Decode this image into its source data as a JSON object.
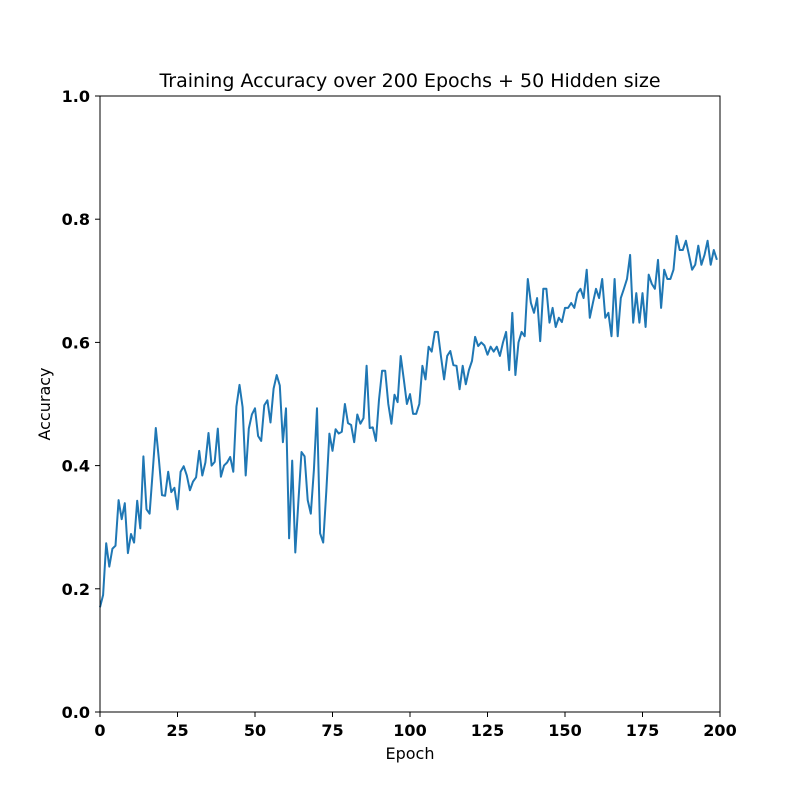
{
  "chart_data": {
    "type": "line",
    "title": "Training Accuracy over 200 Epochs + 50 Hidden size",
    "xlabel": "Epoch",
    "ylabel": "Accuracy",
    "xlim": [
      0,
      200
    ],
    "ylim": [
      0.0,
      1.0
    ],
    "x_ticks": [
      0,
      25,
      50,
      75,
      100,
      125,
      150,
      175,
      200
    ],
    "x_tick_labels": [
      "0",
      "25",
      "50",
      "75",
      "100",
      "125",
      "150",
      "175",
      "200"
    ],
    "y_ticks": [
      0.0,
      0.2,
      0.4,
      0.6,
      0.8,
      1.0
    ],
    "y_tick_labels": [
      "0.0",
      "0.2",
      "0.4",
      "0.6",
      "0.8",
      "1.0"
    ],
    "grid": false,
    "line_color": "#1f77b4",
    "series": [
      {
        "values": [
          0.17,
          0.19,
          0.274,
          0.236,
          0.265,
          0.27,
          0.344,
          0.313,
          0.339,
          0.258,
          0.289,
          0.275,
          0.343,
          0.298,
          0.415,
          0.329,
          0.322,
          0.39,
          0.461,
          0.41,
          0.352,
          0.351,
          0.39,
          0.357,
          0.364,
          0.329,
          0.39,
          0.399,
          0.384,
          0.36,
          0.374,
          0.381,
          0.424,
          0.384,
          0.405,
          0.453,
          0.4,
          0.406,
          0.46,
          0.382,
          0.4,
          0.405,
          0.414,
          0.39,
          0.496,
          0.531,
          0.495,
          0.384,
          0.46,
          0.483,
          0.493,
          0.448,
          0.44,
          0.498,
          0.506,
          0.47,
          0.525,
          0.547,
          0.53,
          0.438,
          0.493,
          0.282,
          0.408,
          0.259,
          0.342,
          0.422,
          0.415,
          0.344,
          0.322,
          0.393,
          0.493,
          0.29,
          0.275,
          0.358,
          0.452,
          0.424,
          0.459,
          0.452,
          0.455,
          0.5,
          0.469,
          0.466,
          0.438,
          0.483,
          0.468,
          0.477,
          0.562,
          0.461,
          0.462,
          0.44,
          0.507,
          0.554,
          0.554,
          0.5,
          0.468,
          0.515,
          0.503,
          0.578,
          0.54,
          0.5,
          0.516,
          0.484,
          0.484,
          0.5,
          0.562,
          0.54,
          0.593,
          0.585,
          0.617,
          0.617,
          0.577,
          0.54,
          0.578,
          0.586,
          0.563,
          0.562,
          0.524,
          0.562,
          0.532,
          0.555,
          0.57,
          0.609,
          0.594,
          0.6,
          0.595,
          0.58,
          0.593,
          0.585,
          0.593,
          0.578,
          0.6,
          0.617,
          0.555,
          0.648,
          0.547,
          0.6,
          0.617,
          0.61,
          0.703,
          0.664,
          0.648,
          0.672,
          0.602,
          0.687,
          0.687,
          0.632,
          0.656,
          0.625,
          0.64,
          0.633,
          0.656,
          0.656,
          0.664,
          0.656,
          0.68,
          0.687,
          0.672,
          0.718,
          0.64,
          0.664,
          0.687,
          0.672,
          0.703,
          0.64,
          0.648,
          0.61,
          0.703,
          0.61,
          0.672,
          0.687,
          0.703,
          0.742,
          0.632,
          0.68,
          0.632,
          0.68,
          0.625,
          0.71,
          0.695,
          0.687,
          0.734,
          0.656,
          0.718,
          0.703,
          0.703,
          0.718,
          0.773,
          0.75,
          0.75,
          0.765,
          0.742,
          0.718,
          0.726,
          0.757,
          0.726,
          0.742,
          0.765,
          0.726,
          0.75,
          0.734
        ]
      }
    ]
  }
}
